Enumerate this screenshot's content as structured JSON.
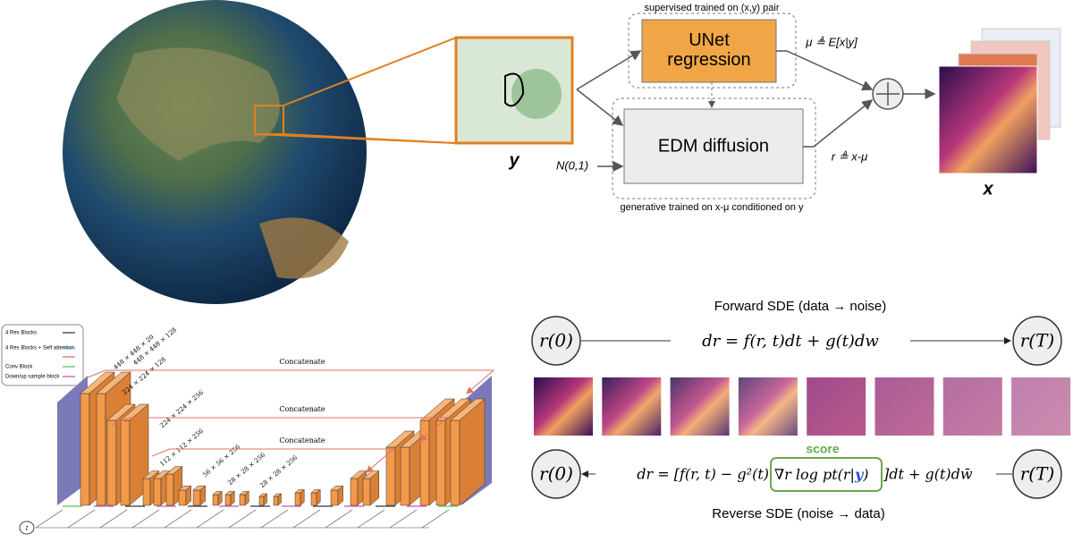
{
  "top_diagram": {
    "supervised_label": "supervised trained on (x,y) pair",
    "unet_box": "UNet regression",
    "edm_box": "EDM diffusion",
    "mean_label": "μ ≜ E[x|y]",
    "residual_label": "r ≜ x-μ",
    "noise_label": "N(0,1)",
    "generative_label": "generative trained on x-μ conditioned on y",
    "input_label": "y",
    "output_label": "x"
  },
  "unet": {
    "legend": [
      "4 Res Blocks",
      "4 Res Blocks + Self attention",
      "Conv Block",
      "Down/up sample block"
    ],
    "dims": [
      "448 × 448 × 20",
      "448 × 448 × 128",
      "224 × 224 × 128",
      "224 × 224 × 256",
      "112 × 112 × 256",
      "56 × 56 × 256",
      "28 × 28 × 256",
      "28 × 28 × 256"
    ],
    "concat": [
      "Concatenate",
      "Concatenate",
      "Concatenate"
    ],
    "time_input": "t"
  },
  "sde": {
    "forward_title": "Forward SDE (data → noise)",
    "reverse_title": "Reverse SDE (noise → data)",
    "score_label": "score",
    "start_node": "r(0)",
    "end_node": "r(T)",
    "forward_equation": "dr = f(r, t)dt + g(t)dw",
    "reverse_equation_start": "dr = [f(r, t) − g²(t)",
    "reverse_score_term": "∇r log pt(r|",
    "reverse_condition": "y",
    "reverse_score_close": ")",
    "reverse_equation_end": "]dt + g(t)dw̄"
  }
}
